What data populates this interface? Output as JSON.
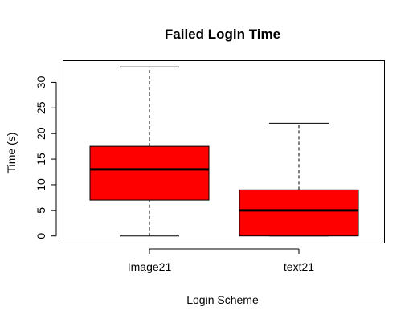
{
  "chart_data": {
    "type": "box",
    "title": "Failed Login Time",
    "xlabel": "Login Scheme",
    "ylabel": "Time (s)",
    "ylim": [
      -1.3,
      34.3
    ],
    "yticks": [
      0,
      5,
      10,
      15,
      20,
      25,
      30
    ],
    "categories": [
      "Image21",
      "text21"
    ],
    "boxes": [
      {
        "category": "Image21",
        "min": 0,
        "q1": 7,
        "median": 13,
        "q3": 17.5,
        "max": 33
      },
      {
        "category": "text21",
        "min": 0,
        "q1": 0,
        "median": 5,
        "q3": 9,
        "max": 22
      }
    ],
    "box_color": "#ff0000",
    "grid": false,
    "legend": "none"
  }
}
